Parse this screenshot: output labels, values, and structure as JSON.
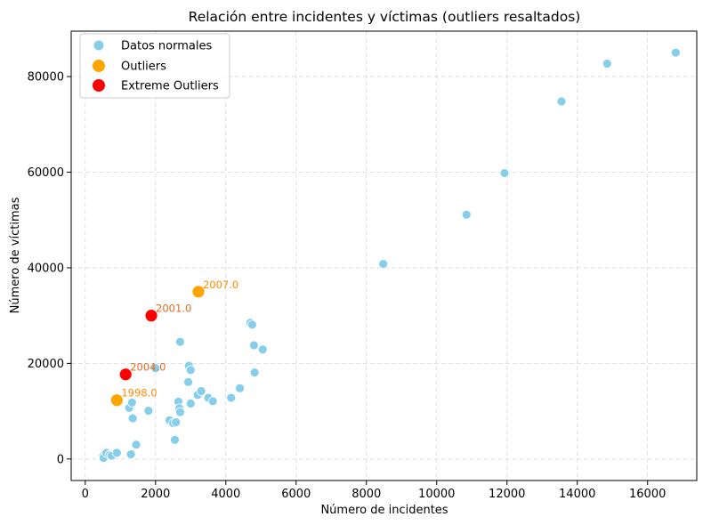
{
  "chart_data": {
    "type": "scatter",
    "title": "Relación entre incidentes y víctimas (outliers resaltados)",
    "xlabel": "Número de incidentes",
    "ylabel": "Número de víctimas",
    "xlim": [
      -400,
      17400
    ],
    "ylim": [
      -4500,
      89500
    ],
    "xticks": [
      0,
      2000,
      4000,
      6000,
      8000,
      10000,
      12000,
      14000,
      16000
    ],
    "yticks": [
      0,
      20000,
      40000,
      60000,
      80000
    ],
    "grid": true,
    "legend_position": "top-left",
    "colors": {
      "normal": "#87ceeb",
      "outlier": "#ffa500",
      "extreme": "#ff0000",
      "annot_outlier": "#ff8c00",
      "annot_extreme": "#e06a20"
    },
    "series": [
      {
        "name": "Datos normales",
        "kind": "normal",
        "points": [
          [
            500,
            500
          ],
          [
            520,
            250
          ],
          [
            600,
            1300
          ],
          [
            700,
            900
          ],
          [
            750,
            700
          ],
          [
            900,
            1300
          ],
          [
            1250,
            10700
          ],
          [
            1300,
            1000
          ],
          [
            1330,
            11800
          ],
          [
            1350,
            8500
          ],
          [
            1450,
            3000
          ],
          [
            1800,
            10100
          ],
          [
            2000,
            19000
          ],
          [
            2400,
            8100
          ],
          [
            2500,
            7500
          ],
          [
            2550,
            4000
          ],
          [
            2580,
            7700
          ],
          [
            2650,
            12000
          ],
          [
            2680,
            10600
          ],
          [
            2700,
            9800
          ],
          [
            2700,
            24500
          ],
          [
            2930,
            16100
          ],
          [
            2950,
            19500
          ],
          [
            3000,
            18600
          ],
          [
            3000,
            11600
          ],
          [
            3200,
            13400
          ],
          [
            3300,
            14200
          ],
          [
            3500,
            12800
          ],
          [
            3630,
            12100
          ],
          [
            4150,
            12800
          ],
          [
            4400,
            14800
          ],
          [
            4700,
            28500
          ],
          [
            4750,
            28100
          ],
          [
            4800,
            23800
          ],
          [
            4820,
            18100
          ],
          [
            5050,
            22900
          ],
          [
            8480,
            40800
          ],
          [
            10850,
            51100
          ],
          [
            11930,
            59800
          ],
          [
            13550,
            74800
          ],
          [
            14850,
            82700
          ],
          [
            16800,
            85000
          ]
        ]
      },
      {
        "name": "Outliers",
        "kind": "outlier",
        "points": [
          [
            900,
            12300
          ],
          [
            3220,
            35000
          ]
        ]
      },
      {
        "name": "Extreme Outliers",
        "kind": "extreme",
        "points": [
          [
            1880,
            30000
          ],
          [
            1150,
            17700
          ]
        ]
      }
    ],
    "annotations": [
      {
        "text": "1998.0",
        "x": 900,
        "y": 12300,
        "kind": "outlier"
      },
      {
        "text": "2007.0",
        "x": 3220,
        "y": 35000,
        "kind": "outlier"
      },
      {
        "text": "2001.0",
        "x": 1880,
        "y": 30000,
        "kind": "extreme"
      },
      {
        "text": "2004.0",
        "x": 1150,
        "y": 17700,
        "kind": "extreme"
      }
    ]
  }
}
